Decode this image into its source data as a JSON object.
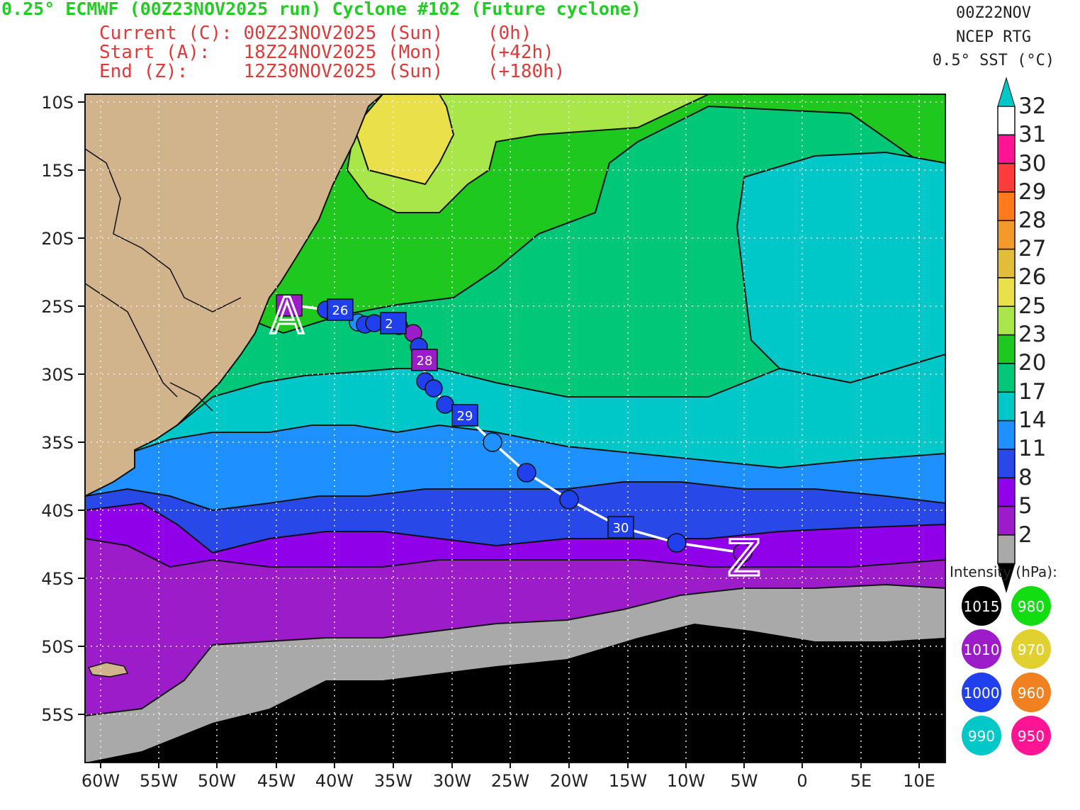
{
  "header": {
    "title": "0.25° ECMWF (00Z23NOV2025 run) Cyclone #102 (Future cyclone)",
    "current": "Current (C): 00Z23NOV2025 (Sun)    (0h)",
    "start": "Start (A):   18Z24NOV2025 (Mon)    (+42h)",
    "end": "End (Z):     12Z30NOV2025 (Sun)    (+180h)"
  },
  "sst_info": {
    "date": "00Z22NOV",
    "source": "NCEP RTG",
    "product": "0.5° SST (°C)"
  },
  "map": {
    "lon_labels": [
      "60W",
      "55W",
      "50W",
      "45W",
      "40W",
      "35W",
      "30W",
      "25W",
      "20W",
      "15W",
      "10W",
      "5W",
      "0",
      "5E",
      "10E"
    ],
    "lat_labels": [
      "10S",
      "15S",
      "20S",
      "25S",
      "30S",
      "35S",
      "40S",
      "45S",
      "50S",
      "55S"
    ],
    "track_markers": {
      "start": "A",
      "end": "Z"
    },
    "day_labels": [
      "26",
      "2",
      "28",
      "29",
      "30"
    ]
  },
  "colorbar": {
    "labels": [
      "32",
      "31",
      "30",
      "29",
      "28",
      "27",
      "26",
      "25",
      "23",
      "20",
      "17",
      "14",
      "11",
      "8",
      "5",
      "2"
    ],
    "colors": [
      "#ffffff",
      "#ff1493",
      "#ff3c3c",
      "#ff7a1a",
      "#f39b2a",
      "#e2bd3a",
      "#eae04a",
      "#a8e64a",
      "#1ec81e",
      "#00c878",
      "#00c8c8",
      "#1e90ff",
      "#2848e8",
      "#9000e8",
      "#9b1cc8",
      "#a9a9a9"
    ],
    "top_arrow_color": "#00c8c8",
    "bottom_arrow_color": "#000000"
  },
  "intensity_legend": {
    "title": "Intensity (hPa):",
    "items": [
      {
        "label": "1015",
        "color": "#000000"
      },
      {
        "label": "980",
        "color": "#11dd11"
      },
      {
        "label": "1010",
        "color": "#9b1cc8"
      },
      {
        "label": "970",
        "color": "#e0d030"
      },
      {
        "label": "1000",
        "color": "#2040ee"
      },
      {
        "label": "960",
        "color": "#f08020"
      },
      {
        "label": "990",
        "color": "#00c8c8"
      },
      {
        "label": "950",
        "color": "#ff1493"
      }
    ]
  }
}
